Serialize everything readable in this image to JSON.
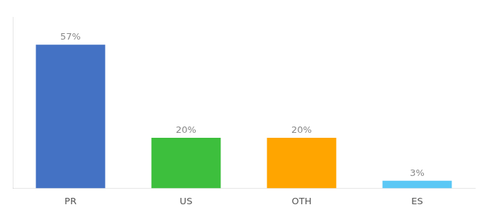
{
  "chart_data": {
    "type": "bar",
    "categories": [
      "PR",
      "US",
      "OTH",
      "ES"
    ],
    "values": [
      57,
      20,
      20,
      3
    ],
    "value_labels": [
      "57%",
      "20%",
      "20%",
      "3%"
    ],
    "data_labels": true,
    "colors": [
      "#4472C4",
      "#3DBF3D",
      "#FFA500",
      "#5BC8F5"
    ],
    "ylim": [
      0,
      68
    ],
    "tick_labels": "x",
    "grid": false
  }
}
